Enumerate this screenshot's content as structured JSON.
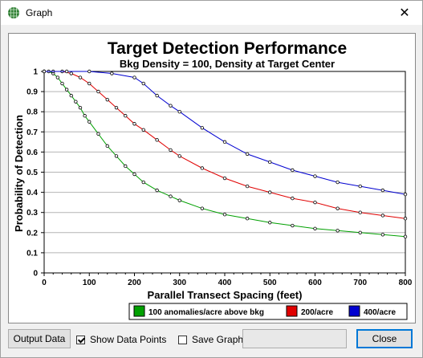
{
  "window": {
    "title": "Graph",
    "close_glyph": "✕",
    "icon": "grid-globe-icon"
  },
  "chart_data": {
    "type": "line",
    "title": "Target Detection Performance",
    "subtitle": "Bkg Density = 100, Density at Target Center",
    "xlabel": "Parallel Transect Spacing (feet)",
    "ylabel": "Probability of Detection",
    "xlim": [
      0,
      800
    ],
    "ylim": [
      0,
      1
    ],
    "xticks": [
      0,
      100,
      200,
      300,
      400,
      500,
      600,
      700,
      800
    ],
    "yticks": [
      0,
      0.1,
      0.2,
      0.3,
      0.4,
      0.5,
      0.6,
      0.7,
      0.8,
      0.9,
      1
    ],
    "ytick_labels": [
      "0",
      "0.1",
      "0.2",
      "0.3",
      "0.4",
      "0.5",
      "0.6",
      "0.7",
      "0.8",
      "0.9",
      "1"
    ],
    "grid": "horizontal",
    "legend_placement": "bottom",
    "show_points": true,
    "series": [
      {
        "name": "100 anomalies/acre above bkg",
        "color": "#00a000",
        "x": [
          0,
          10,
          20,
          30,
          40,
          50,
          60,
          70,
          80,
          90,
          100,
          120,
          140,
          160,
          180,
          200,
          220,
          250,
          280,
          300,
          350,
          400,
          450,
          500,
          550,
          600,
          650,
          700,
          750,
          800
        ],
        "y": [
          1.0,
          1.0,
          0.99,
          0.97,
          0.94,
          0.91,
          0.88,
          0.85,
          0.82,
          0.78,
          0.75,
          0.69,
          0.63,
          0.58,
          0.53,
          0.49,
          0.45,
          0.41,
          0.38,
          0.36,
          0.32,
          0.29,
          0.27,
          0.25,
          0.235,
          0.22,
          0.21,
          0.2,
          0.19,
          0.18
        ]
      },
      {
        "name": "200/acre",
        "color": "#e00000",
        "x": [
          0,
          20,
          40,
          60,
          80,
          100,
          120,
          140,
          160,
          180,
          200,
          220,
          250,
          280,
          300,
          350,
          400,
          450,
          500,
          550,
          600,
          650,
          700,
          750,
          800
        ],
        "y": [
          1.0,
          1.0,
          1.0,
          0.99,
          0.97,
          0.94,
          0.9,
          0.86,
          0.82,
          0.78,
          0.74,
          0.71,
          0.66,
          0.61,
          0.58,
          0.52,
          0.47,
          0.43,
          0.4,
          0.37,
          0.35,
          0.32,
          0.3,
          0.285,
          0.27
        ]
      },
      {
        "name": "400/acre",
        "color": "#0000d0",
        "x": [
          0,
          50,
          100,
          150,
          200,
          220,
          250,
          280,
          300,
          350,
          400,
          450,
          500,
          550,
          600,
          650,
          700,
          750,
          800
        ],
        "y": [
          1.0,
          1.0,
          1.0,
          0.99,
          0.97,
          0.94,
          0.88,
          0.83,
          0.8,
          0.72,
          0.65,
          0.59,
          0.55,
          0.51,
          0.48,
          0.45,
          0.43,
          0.41,
          0.39
        ]
      }
    ]
  },
  "controls": {
    "output_data_label": "Output Data",
    "show_points_label": "Show Data Points",
    "show_points_checked": true,
    "save_graph_label": "Save Graph",
    "save_graph_checked": false,
    "filename_value": "",
    "close_label": "Close"
  }
}
